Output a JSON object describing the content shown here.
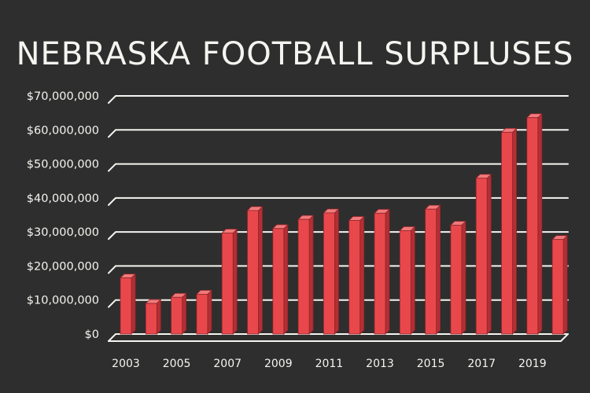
{
  "chart_data": {
    "type": "bar",
    "title": "NEBRASKA FOOTBALL SURPLUSES",
    "xlabel": "",
    "ylabel": "",
    "ylim": [
      0,
      70000000
    ],
    "grid": true,
    "years": [
      2003,
      2004,
      2005,
      2006,
      2007,
      2008,
      2009,
      2010,
      2011,
      2012,
      2013,
      2014,
      2015,
      2016,
      2017,
      2018,
      2019,
      2020
    ],
    "values": [
      16500000,
      9000000,
      10800000,
      11700000,
      29700000,
      36300000,
      31000000,
      33700000,
      35600000,
      33400000,
      35500000,
      30400000,
      36700000,
      32000000,
      45800000,
      59300000,
      63600000,
      27800000
    ],
    "x_tick_labels": [
      "2003",
      "2005",
      "2007",
      "2009",
      "2011",
      "2013",
      "2015",
      "2017",
      "2019"
    ],
    "y_tick_labels": [
      "$0",
      "$10,000,000",
      "$20,000,000",
      "$30,000,000",
      "$40,000,000",
      "$50,000,000",
      "$60,000,000",
      "$70,000,000"
    ],
    "colors": {
      "bar": "#e8484c",
      "bar_top": "#f07a7b",
      "bar_side": "#b32f34",
      "grid": "#f4f4f0",
      "background": "#2e2e2e"
    }
  }
}
